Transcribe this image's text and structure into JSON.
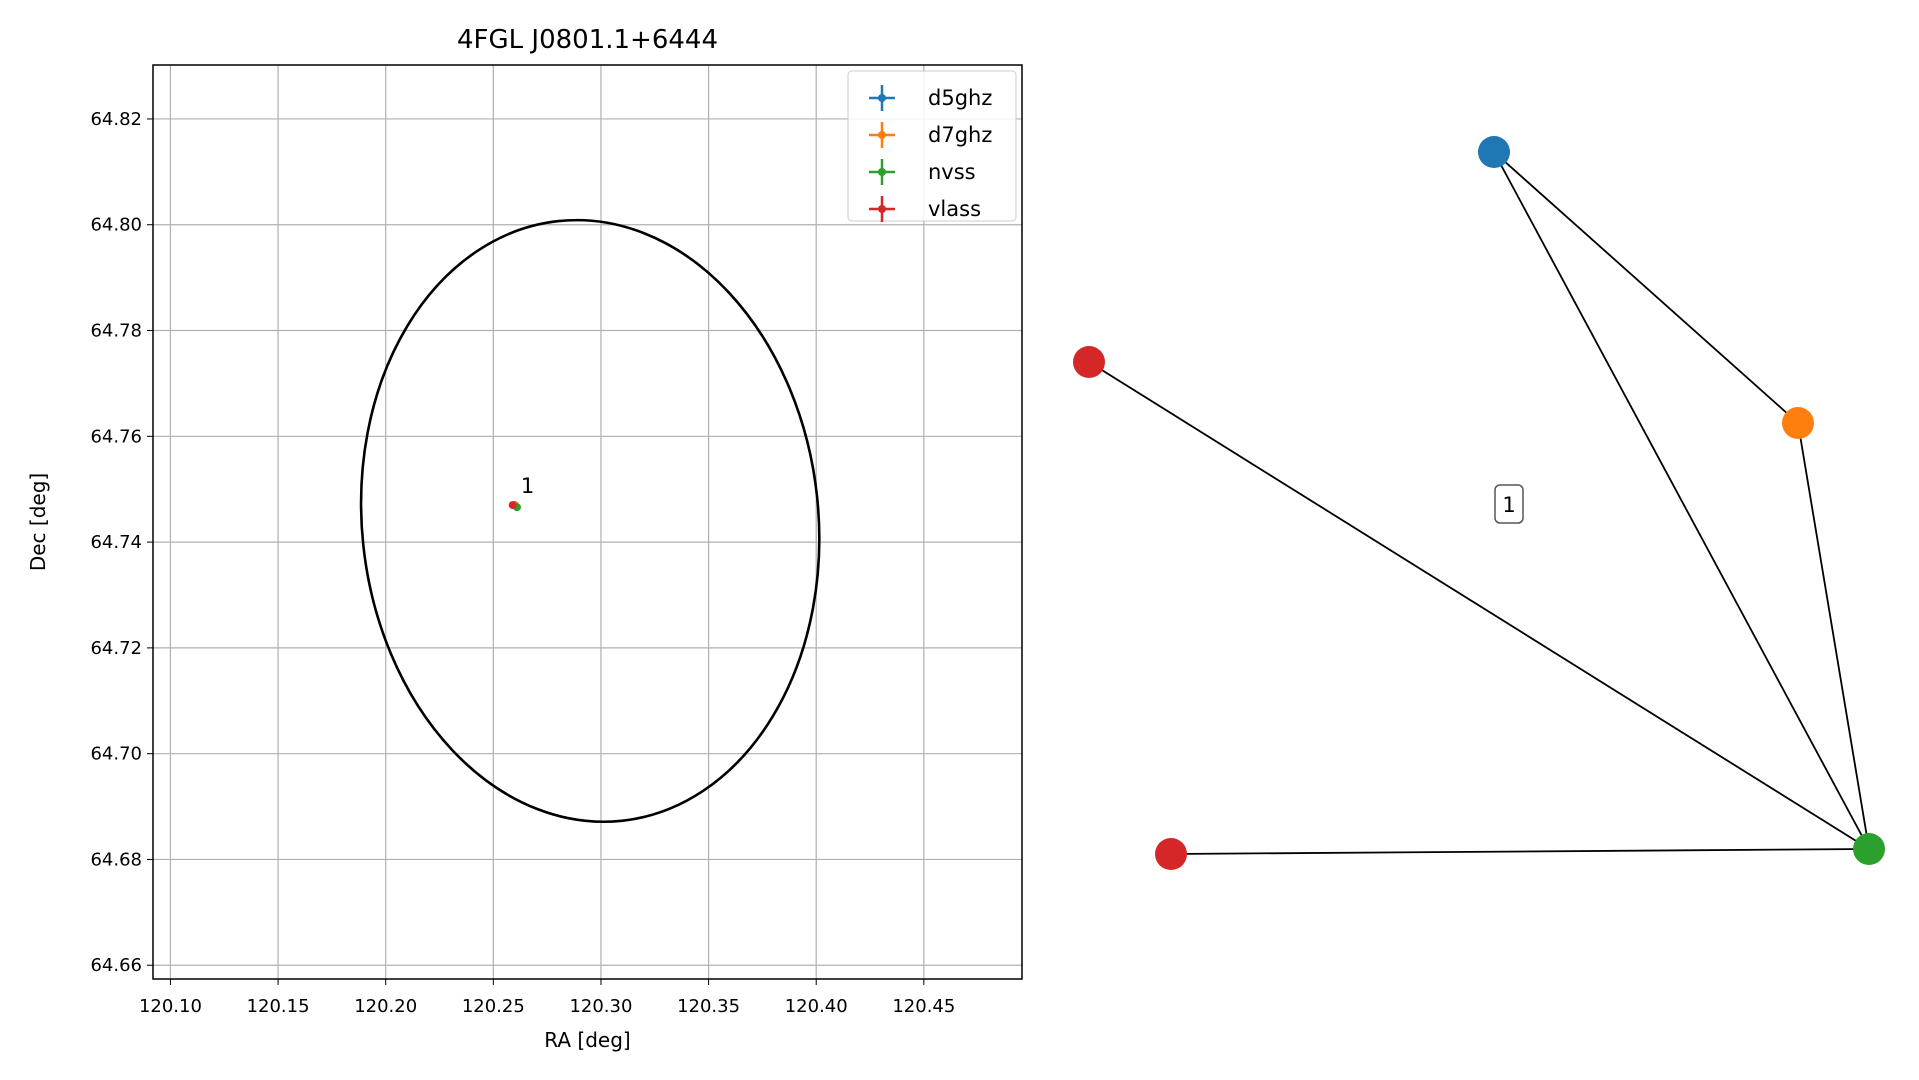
{
  "chart_data": [
    {
      "type": "scatter",
      "title": "4FGL J0801.1+6444",
      "xlabel": "RA [deg]",
      "ylabel": "Dec [deg]",
      "xlim": [
        120.0919,
        120.4956
      ],
      "ylim": [
        64.6574,
        64.8302
      ],
      "xticks": [
        {
          "value": 120.1,
          "label": "120.10"
        },
        {
          "value": 120.15,
          "label": "120.15"
        },
        {
          "value": 120.2,
          "label": "120.20"
        },
        {
          "value": 120.25,
          "label": "120.25"
        },
        {
          "value": 120.3,
          "label": "120.30"
        },
        {
          "value": 120.35,
          "label": "120.35"
        },
        {
          "value": 120.4,
          "label": "120.40"
        },
        {
          "value": 120.45,
          "label": "120.45"
        }
      ],
      "yticks": [
        64.66,
        {
          "value": 64.68,
          "label": "64.68"
        },
        {
          "value": 64.7,
          "label": "64.70"
        },
        64.72,
        64.74,
        64.76,
        64.78,
        {
          "value": 64.8,
          "label": "64.80"
        },
        64.82
      ],
      "grid": true,
      "legend": "upper right",
      "series": [
        {
          "name": "d5ghz",
          "color": "#1f77b4",
          "x": [
            120.26
          ],
          "values": [
            64.747
          ]
        },
        {
          "name": "d7ghz",
          "color": "#ff7f0e",
          "x": [
            120.26
          ],
          "values": [
            64.747
          ]
        },
        {
          "name": "nvss",
          "color": "#2ca02c",
          "x": [
            120.261
          ],
          "values": [
            64.7466
          ]
        },
        {
          "name": "vlass",
          "color": "#d62728",
          "x": [
            120.259
          ],
          "values": [
            64.747
          ]
        }
      ],
      "annotation": "1",
      "ellipse": {
        "x": 120.295,
        "y": 64.744,
        "rx": 0.106,
        "ry": 0.057,
        "angle": -6,
        "color": "#000000"
      }
    },
    {
      "type": "network",
      "label": "1",
      "nodes": [
        {
          "color": "#1f77b4"
        },
        {
          "color": "#ff7f0e"
        },
        {
          "color": "#d62728"
        },
        {
          "color": "#d62728"
        },
        {
          "color": "#2ca02c"
        }
      ],
      "edges": [
        [
          0,
          1
        ],
        [
          0,
          4
        ],
        [
          1,
          4
        ],
        [
          2,
          4
        ],
        [
          3,
          4
        ]
      ]
    }
  ]
}
